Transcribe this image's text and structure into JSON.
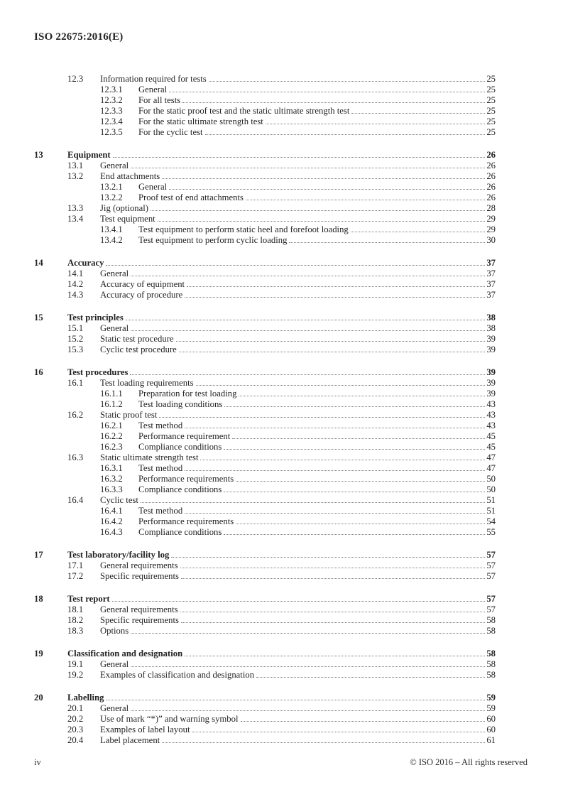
{
  "page": {
    "header": "ISO 22675:2016(E)",
    "footer_left": "iv",
    "footer_right": "© ISO 2016 – All rights reserved"
  },
  "toc": {
    "entries": [
      {
        "level": 2,
        "num": "12.3",
        "title": "Information required for tests",
        "page": "25"
      },
      {
        "level": 3,
        "num": "12.3.1",
        "title": "General",
        "page": "25"
      },
      {
        "level": 3,
        "num": "12.3.2",
        "title": "For all tests",
        "page": "25"
      },
      {
        "level": 3,
        "num": "12.3.3",
        "title": "For the static proof test and the static ultimate strength test",
        "page": "25"
      },
      {
        "level": 3,
        "num": "12.3.4",
        "title": "For the static ultimate strength test",
        "page": "25"
      },
      {
        "level": 3,
        "num": "12.3.5",
        "title": "For the cyclic test",
        "page": "25"
      },
      {
        "level": 1,
        "num": "13",
        "title": "Equipment",
        "page": "26"
      },
      {
        "level": 2,
        "num": "13.1",
        "title": "General",
        "page": "26"
      },
      {
        "level": 2,
        "num": "13.2",
        "title": "End attachments",
        "page": "26"
      },
      {
        "level": 3,
        "num": "13.2.1",
        "title": "General",
        "page": "26"
      },
      {
        "level": 3,
        "num": "13.2.2",
        "title": "Proof test of end attachments",
        "page": "26"
      },
      {
        "level": 2,
        "num": "13.3",
        "title": "Jig (optional)",
        "page": "28"
      },
      {
        "level": 2,
        "num": "13.4",
        "title": "Test equipment",
        "page": "29"
      },
      {
        "level": 3,
        "num": "13.4.1",
        "title": "Test equipment to perform static heel and forefoot loading",
        "page": "29"
      },
      {
        "level": 3,
        "num": "13.4.2",
        "title": "Test equipment to perform cyclic loading",
        "page": "30"
      },
      {
        "level": 1,
        "num": "14",
        "title": "Accuracy",
        "page": "37"
      },
      {
        "level": 2,
        "num": "14.1",
        "title": "General",
        "page": "37"
      },
      {
        "level": 2,
        "num": "14.2",
        "title": "Accuracy of equipment",
        "page": "37"
      },
      {
        "level": 2,
        "num": "14.3",
        "title": "Accuracy of procedure",
        "page": "37"
      },
      {
        "level": 1,
        "num": "15",
        "title": "Test principles",
        "page": "38"
      },
      {
        "level": 2,
        "num": "15.1",
        "title": "General",
        "page": "38"
      },
      {
        "level": 2,
        "num": "15.2",
        "title": "Static test procedure",
        "page": "39"
      },
      {
        "level": 2,
        "num": "15.3",
        "title": "Cyclic test procedure",
        "page": "39"
      },
      {
        "level": 1,
        "num": "16",
        "title": "Test procedures",
        "page": "39"
      },
      {
        "level": 2,
        "num": "16.1",
        "title": "Test loading requirements",
        "page": "39"
      },
      {
        "level": 3,
        "num": "16.1.1",
        "title": "Preparation for test loading",
        "page": "39"
      },
      {
        "level": 3,
        "num": "16.1.2",
        "title": "Test loading conditions",
        "page": "43"
      },
      {
        "level": 2,
        "num": "16.2",
        "title": "Static proof test",
        "page": "43"
      },
      {
        "level": 3,
        "num": "16.2.1",
        "title": "Test method",
        "page": "43"
      },
      {
        "level": 3,
        "num": "16.2.2",
        "title": "Performance requirement",
        "page": "45"
      },
      {
        "level": 3,
        "num": "16.2.3",
        "title": "Compliance conditions",
        "page": "45"
      },
      {
        "level": 2,
        "num": "16.3",
        "title": "Static ultimate strength test",
        "page": "47"
      },
      {
        "level": 3,
        "num": "16.3.1",
        "title": "Test method",
        "page": "47"
      },
      {
        "level": 3,
        "num": "16.3.2",
        "title": "Performance requirements",
        "page": "50"
      },
      {
        "level": 3,
        "num": "16.3.3",
        "title": "Compliance conditions",
        "page": "50"
      },
      {
        "level": 2,
        "num": "16.4",
        "title": "Cyclic test",
        "page": "51"
      },
      {
        "level": 3,
        "num": "16.4.1",
        "title": "Test method",
        "page": "51"
      },
      {
        "level": 3,
        "num": "16.4.2",
        "title": "Performance requirements",
        "page": "54"
      },
      {
        "level": 3,
        "num": "16.4.3",
        "title": "Compliance conditions",
        "page": "55"
      },
      {
        "level": 1,
        "num": "17",
        "title": "Test laboratory/facility log",
        "page": "57"
      },
      {
        "level": 2,
        "num": "17.1",
        "title": "General requirements",
        "page": "57"
      },
      {
        "level": 2,
        "num": "17.2",
        "title": "Specific requirements",
        "page": "57"
      },
      {
        "level": 1,
        "num": "18",
        "title": "Test report",
        "page": "57"
      },
      {
        "level": 2,
        "num": "18.1",
        "title": "General requirements",
        "page": "57"
      },
      {
        "level": 2,
        "num": "18.2",
        "title": "Specific requirements",
        "page": "58"
      },
      {
        "level": 2,
        "num": "18.3",
        "title": "Options",
        "page": "58"
      },
      {
        "level": 1,
        "num": "19",
        "title": "Classification and designation",
        "page": "58"
      },
      {
        "level": 2,
        "num": "19.1",
        "title": "General",
        "page": "58"
      },
      {
        "level": 2,
        "num": "19.2",
        "title": "Examples of classification and designation",
        "page": "58"
      },
      {
        "level": 1,
        "num": "20",
        "title": "Labelling",
        "page": "59"
      },
      {
        "level": 2,
        "num": "20.1",
        "title": "General",
        "page": "59"
      },
      {
        "level": 2,
        "num": "20.2",
        "title": "Use of mark “*)” and warning symbol",
        "page": "60"
      },
      {
        "level": 2,
        "num": "20.3",
        "title": "Examples of label layout",
        "page": "60"
      },
      {
        "level": 2,
        "num": "20.4",
        "title": "Label placement",
        "page": "61"
      }
    ]
  }
}
